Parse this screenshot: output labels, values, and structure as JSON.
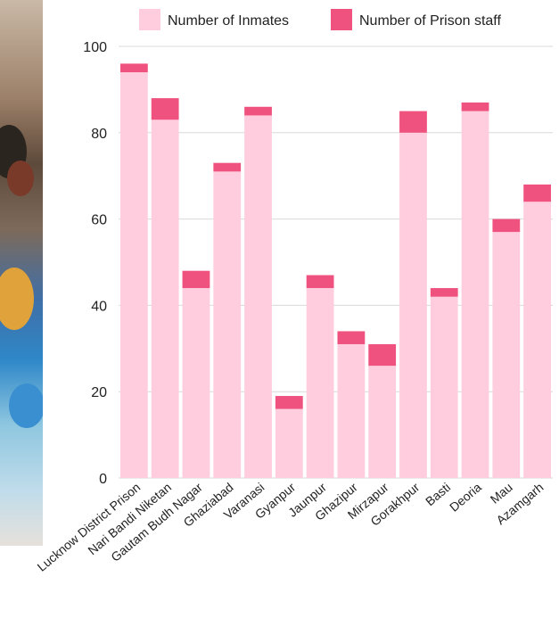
{
  "chart_data": {
    "type": "bar",
    "stacked": true,
    "categories": [
      "Lucknow District Prison",
      "Nari Bandi Niketan",
      "Gautam Budh Nagar",
      "Ghaziabad",
      "Varanasi",
      "Gyanpur",
      "Jaunpur",
      "Ghazipur",
      "Mirzapur",
      "Gorakhpur",
      "Basti",
      "Deoria",
      "Mau",
      "Azamgarh"
    ],
    "series": [
      {
        "name": "Number of Inmates",
        "color": "#ffcddd",
        "values": [
          94,
          83,
          44,
          71,
          84,
          16,
          44,
          31,
          26,
          80,
          42,
          85,
          57,
          64
        ]
      },
      {
        "name": "Number of Prison staff",
        "color": "#f0527f",
        "values": [
          2,
          5,
          4,
          2,
          2,
          3,
          3,
          3,
          5,
          5,
          2,
          2,
          3,
          4
        ]
      }
    ],
    "ylim": [
      0,
      100
    ],
    "yticks": [
      0,
      20,
      40,
      60,
      80,
      100
    ],
    "grid": true,
    "legend": "top"
  }
}
